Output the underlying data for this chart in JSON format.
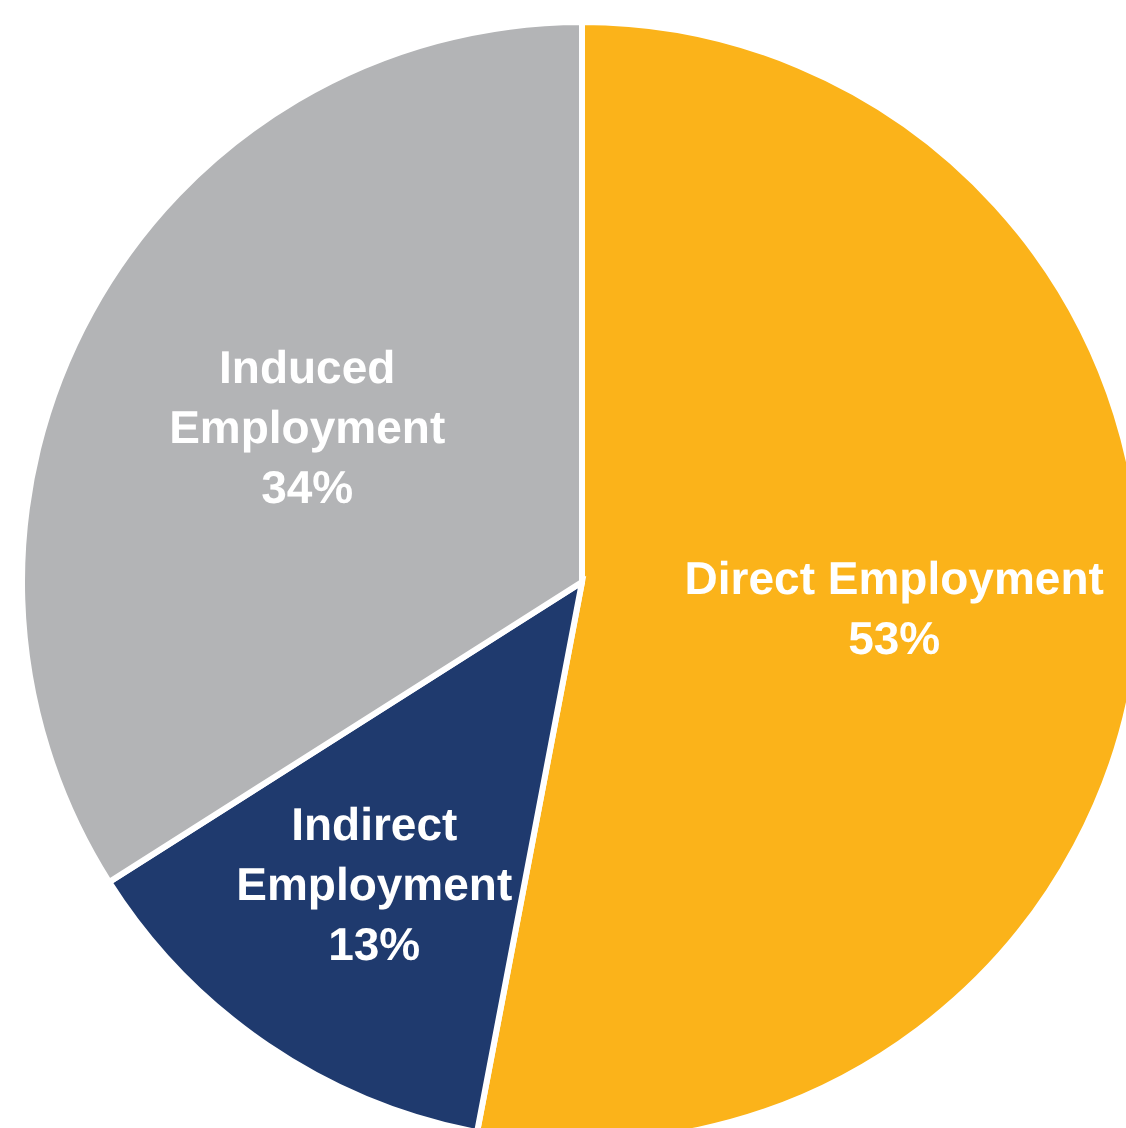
{
  "chart_data": {
    "type": "pie",
    "categories": [
      "Direct Employment",
      "Indirect Employment",
      "Induced Employment"
    ],
    "values": [
      53,
      13,
      34
    ],
    "colors": [
      "#fbb31a",
      "#1f3a6e",
      "#b3b4b6"
    ],
    "value_labels": [
      "53%",
      "13%",
      "34%"
    ],
    "legend": false
  }
}
